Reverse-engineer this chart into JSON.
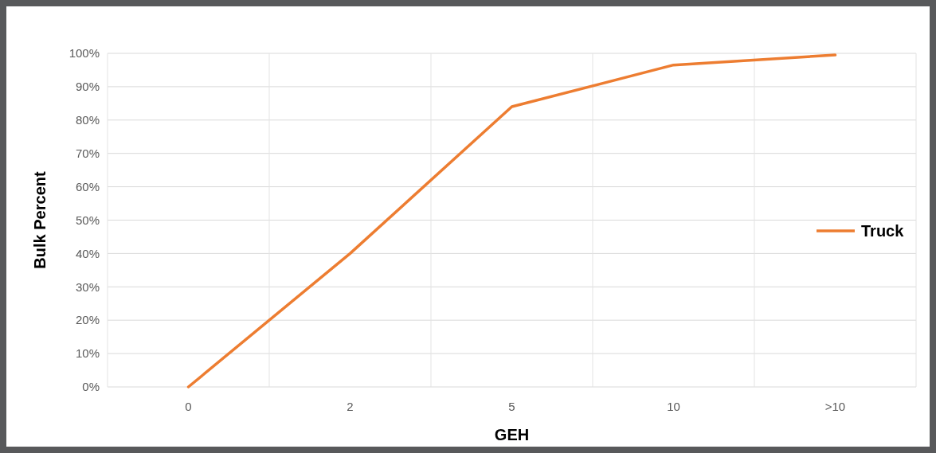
{
  "chart_data": {
    "type": "line",
    "xlabel": "GEH",
    "ylabel": "Bulk Percent",
    "categories": [
      "0",
      "2",
      "5",
      "10",
      ">10"
    ],
    "series": [
      {
        "name": "Truck",
        "color": "#ed7d31",
        "values": [
          0,
          40,
          84,
          96.5,
          99.5
        ]
      }
    ],
    "ylim": [
      0,
      100
    ],
    "yticks": [
      {
        "value": 0,
        "label": "0%"
      },
      {
        "value": 10,
        "label": "10%"
      },
      {
        "value": 20,
        "label": "20%"
      },
      {
        "value": 30,
        "label": "30%"
      },
      {
        "value": 40,
        "label": "40%"
      },
      {
        "value": 50,
        "label": "50%"
      },
      {
        "value": 60,
        "label": "60%"
      },
      {
        "value": 70,
        "label": "70%"
      },
      {
        "value": 80,
        "label": "80%"
      },
      {
        "value": 90,
        "label": "90%"
      },
      {
        "value": 100,
        "label": "100%"
      }
    ],
    "grid": true,
    "legend": "right",
    "marker": "none",
    "line_style": "solid"
  }
}
